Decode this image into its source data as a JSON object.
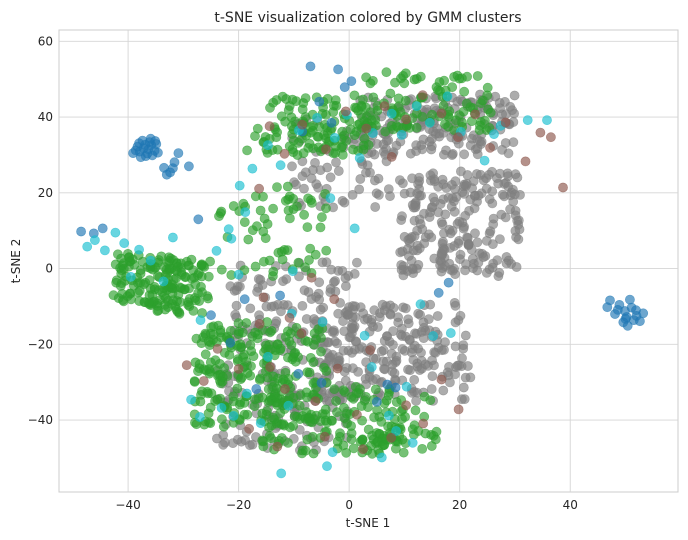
{
  "chart_data": {
    "type": "scatter",
    "title": "t-SNE visualization colored by GMM clusters",
    "xlabel": "t-SNE 1",
    "ylabel": "t-SNE 2",
    "xlim": [
      -52.5,
      59.5
    ],
    "ylim": [
      -59,
      63
    ],
    "xticks": [
      -40,
      -20,
      0,
      20,
      40
    ],
    "yticks": [
      -40,
      -20,
      0,
      20,
      40,
      60
    ],
    "tick_labels_x": [
      "−40",
      "−20",
      "0",
      "20",
      "40"
    ],
    "tick_labels_y": [
      "−40",
      "−20",
      "0",
      "20",
      "40",
      "60"
    ],
    "grid": true,
    "legend": "none",
    "point_alpha": 0.65,
    "colors": {
      "blue": "#1f77b4",
      "green": "#2ca02c",
      "gray": "#7f7f7f",
      "brown": "#8c564b",
      "cyan": "#17becf"
    },
    "series": [
      {
        "color": "#1f77b4",
        "points": [
          [
            -37.2,
            31.8
          ],
          [
            -36.5,
            30.4
          ],
          [
            -35.8,
            32.6
          ],
          [
            -37.9,
            30.9
          ],
          [
            -36.1,
            33.4
          ],
          [
            -35.2,
            31.1
          ],
          [
            -38.3,
            32.2
          ],
          [
            -36.8,
            29.7
          ],
          [
            -34.9,
            32.9
          ],
          [
            -37.4,
            33.8
          ],
          [
            -35.6,
            29.9
          ],
          [
            -38.6,
            31.2
          ],
          [
            -36.3,
            31.5
          ],
          [
            -34.6,
            30.6
          ],
          [
            -37.7,
            29.4
          ],
          [
            -35.9,
            34.3
          ],
          [
            -39.1,
            30.5
          ],
          [
            -36.9,
            32.7
          ],
          [
            -35.1,
            33.7
          ],
          [
            -38.0,
            33.1
          ],
          [
            -33.5,
            26.6
          ],
          [
            -32.4,
            25.4
          ],
          [
            -31.6,
            28.1
          ],
          [
            -30.9,
            30.5
          ],
          [
            -29.0,
            27.0
          ],
          [
            -33.0,
            24.8
          ],
          [
            -31.9,
            26.5
          ],
          [
            -7.0,
            53.4
          ],
          [
            0.4,
            49.5
          ],
          [
            -2.0,
            52.6
          ],
          [
            -0.8,
            47.9
          ],
          [
            -3.2,
            38.5
          ],
          [
            -8.5,
            36.2
          ],
          [
            -5.4,
            44.1
          ],
          [
            -48.5,
            9.8
          ],
          [
            -44.6,
            10.6
          ],
          [
            -46.2,
            9.3
          ],
          [
            -27.3,
            13.0
          ],
          [
            -25.0,
            -12.3
          ],
          [
            -21.5,
            -19.6
          ],
          [
            -18.9,
            -8.1
          ],
          [
            -12.5,
            -7.1
          ],
          [
            -5.0,
            -30.2
          ],
          [
            -9.2,
            -27.8
          ],
          [
            -16.8,
            -31.8
          ],
          [
            6.9,
            -30.6
          ],
          [
            8.4,
            -31.4
          ],
          [
            5.0,
            -35.2
          ],
          [
            16.2,
            -6.4
          ],
          [
            18.0,
            -3.7
          ],
          [
            47.2,
            -8.4
          ],
          [
            48.6,
            -10.9
          ],
          [
            50.2,
            -12.8
          ],
          [
            51.1,
            -10.3
          ],
          [
            49.6,
            -14.2
          ],
          [
            52.0,
            -12.5
          ],
          [
            50.8,
            -8.2
          ],
          [
            48.1,
            -12.0
          ],
          [
            53.2,
            -11.8
          ],
          [
            49.9,
            -11.2
          ],
          [
            51.5,
            -13.6
          ],
          [
            46.7,
            -10.2
          ],
          [
            50.4,
            -15.1
          ],
          [
            52.6,
            -13.9
          ],
          [
            48.9,
            -9.6
          ],
          [
            51.9,
            -11.0
          ],
          [
            50.0,
            -13.3
          ]
        ]
      },
      {
        "color": "#17becf",
        "points": [
          [
            -47.4,
            5.8
          ],
          [
            -46.0,
            7.5
          ],
          [
            -44.2,
            4.8
          ],
          [
            -42.3,
            9.5
          ],
          [
            -40.7,
            6.7
          ],
          [
            -38.0,
            5.0
          ],
          [
            -35.9,
            2.1
          ],
          [
            -33.6,
            -3.4
          ],
          [
            -31.9,
            8.2
          ],
          [
            -39.5,
            -2.2
          ],
          [
            -26.9,
            -13.6
          ],
          [
            -28.6,
            -34.6
          ],
          [
            -27.0,
            -39.2
          ],
          [
            -23.1,
            -36.8
          ],
          [
            -20.9,
            -38.9
          ],
          [
            -18.5,
            -33.0
          ],
          [
            -12.3,
            -54.1
          ],
          [
            -4.0,
            -52.2
          ],
          [
            -3.0,
            -48.5
          ],
          [
            5.9,
            -49.9
          ],
          [
            8.5,
            -42.9
          ],
          [
            11.5,
            -46.0
          ],
          [
            7.2,
            -38.8
          ],
          [
            10.4,
            -31.2
          ],
          [
            4.1,
            -26.0
          ],
          [
            12.9,
            -9.4
          ],
          [
            15.2,
            -17.8
          ],
          [
            18.4,
            -17.0
          ],
          [
            -19.8,
            21.9
          ],
          [
            -17.5,
            26.4
          ],
          [
            -14.7,
            32.6
          ],
          [
            -12.4,
            27.3
          ],
          [
            -9.1,
            36.5
          ],
          [
            -5.8,
            39.8
          ],
          [
            -2.6,
            34.5
          ],
          [
            -0.4,
            40.6
          ],
          [
            1.9,
            29.2
          ],
          [
            4.3,
            35.8
          ],
          [
            7.7,
            40.9
          ],
          [
            9.5,
            35.3
          ],
          [
            12.2,
            42.9
          ],
          [
            14.6,
            38.5
          ],
          [
            17.8,
            45.5
          ],
          [
            20.2,
            36.1
          ],
          [
            24.5,
            28.5
          ],
          [
            27.4,
            37.7
          ],
          [
            32.3,
            39.2
          ],
          [
            35.8,
            39.2
          ],
          [
            -21.3,
            7.9
          ],
          [
            -20.0,
            -1.6
          ],
          [
            -10.4,
            -11.9
          ],
          [
            -14.7,
            -23.3
          ],
          [
            -4.8,
            -14.1
          ],
          [
            -21.8,
            10.4
          ],
          [
            -24.0,
            4.7
          ],
          [
            -16.0,
            -40.8
          ],
          [
            -11.0,
            -36.2
          ],
          [
            2.8,
            -17.7
          ],
          [
            -10.2,
            -0.7
          ],
          [
            1.0,
            10.6
          ],
          [
            -3.4,
            18.6
          ],
          [
            -18.8,
            14.9
          ],
          [
            26.2,
            35.5
          ]
        ]
      },
      {
        "color": "#8c564b",
        "points": [
          [
            -23.8,
            -21.2
          ],
          [
            -20.0,
            -26.5
          ],
          [
            -16.2,
            -14.6
          ],
          [
            -14.3,
            -26.0
          ],
          [
            -11.6,
            -31.8
          ],
          [
            -8.6,
            -17.1
          ],
          [
            -6.1,
            -35.0
          ],
          [
            -2.1,
            -26.4
          ],
          [
            1.4,
            -38.6
          ],
          [
            3.8,
            -21.5
          ],
          [
            7.6,
            -44.7
          ],
          [
            10.3,
            -36.1
          ],
          [
            13.4,
            -40.9
          ],
          [
            16.7,
            -29.3
          ],
          [
            19.8,
            -37.2
          ],
          [
            -26.3,
            -29.7
          ],
          [
            -18.1,
            -42.3
          ],
          [
            -13.0,
            -47.0
          ],
          [
            -4.4,
            -44.4
          ],
          [
            2.5,
            -47.7
          ],
          [
            -29.4,
            -25.5
          ],
          [
            -15.5,
            -7.6
          ],
          [
            -10.8,
            -13.0
          ],
          [
            -2.7,
            -8.1
          ],
          [
            -6.8,
            -2.4
          ],
          [
            -11.7,
            30.3
          ],
          [
            -8.5,
            38.0
          ],
          [
            -4.2,
            31.5
          ],
          [
            -0.6,
            41.5
          ],
          [
            3.1,
            37.0
          ],
          [
            6.4,
            42.9
          ],
          [
            10.3,
            39.4
          ],
          [
            13.3,
            45.8
          ],
          [
            16.7,
            41.0
          ],
          [
            19.7,
            34.7
          ],
          [
            22.8,
            40.7
          ],
          [
            25.5,
            31.9
          ],
          [
            28.3,
            38.6
          ],
          [
            31.9,
            28.3
          ],
          [
            34.6,
            35.9
          ],
          [
            36.5,
            34.7
          ],
          [
            38.7,
            21.4
          ],
          [
            -14.4,
            37.6
          ],
          [
            -16.3,
            21.1
          ],
          [
            7.7,
            29.5
          ]
        ]
      }
    ],
    "generated_series": [
      {
        "color": "#7f7f7f",
        "blob": [
          -12,
          -36,
          12,
          12
        ],
        "count": 120,
        "seed": 11
      },
      {
        "color": "#7f7f7f",
        "blob": [
          8,
          -22,
          14,
          13
        ],
        "count": 220,
        "seed": 12
      },
      {
        "color": "#7f7f7f",
        "blob": [
          20,
          12,
          11,
          14
        ],
        "count": 220,
        "seed": 13
      },
      {
        "color": "#7f7f7f",
        "blob": [
          16,
          38,
          14,
          8
        ],
        "count": 170,
        "seed": 14
      },
      {
        "color": "#7f7f7f",
        "blob": [
          -10,
          -10,
          12,
          12
        ],
        "count": 120,
        "seed": 15
      },
      {
        "color": "#7f7f7f",
        "blob": [
          -2,
          28,
          10,
          12
        ],
        "count": 70,
        "seed": 16
      },
      {
        "color": "#2ca02c",
        "blob": [
          -34,
          -4,
          9,
          8
        ],
        "count": 170,
        "seed": 21
      },
      {
        "color": "#2ca02c",
        "blob": [
          -16,
          -28,
          12,
          14
        ],
        "count": 230,
        "seed": 22
      },
      {
        "color": "#2ca02c",
        "blob": [
          -3,
          -40,
          13,
          9
        ],
        "count": 120,
        "seed": 23
      },
      {
        "color": "#2ca02c",
        "blob": [
          -8,
          38,
          12,
          8
        ],
        "count": 120,
        "seed": 24
      },
      {
        "color": "#2ca02c",
        "blob": [
          14,
          44,
          12,
          8
        ],
        "count": 100,
        "seed": 25
      },
      {
        "color": "#2ca02c",
        "blob": [
          -14,
          10,
          10,
          12
        ],
        "count": 60,
        "seed": 26
      },
      {
        "color": "#2ca02c",
        "blob": [
          10,
          -40,
          8,
          8
        ],
        "count": 45,
        "seed": 27
      }
    ]
  }
}
